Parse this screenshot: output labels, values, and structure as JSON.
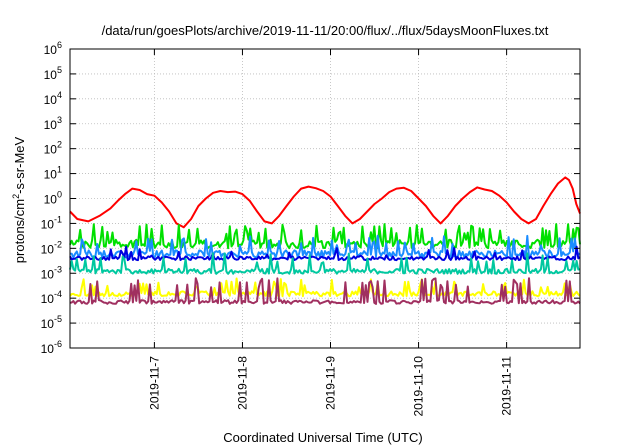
{
  "chart_data": {
    "type": "line",
    "title": "/data/run/goesPlots/archive/2019-11-11/20:00/flux/../flux/5daysMoonFluxes.txt",
    "xlabel": "Coordinated Universal Time (UTC)",
    "ylabel": {
      "base": "protons/cm",
      "sup": "2",
      "rest": "-s-sr-MeV"
    },
    "yscale": "log",
    "ylim": [
      1e-06,
      1000000.0
    ],
    "xlim": [
      "2019-11-06T01:00",
      "2019-11-11T20:00"
    ],
    "y_ticks": [
      {
        "value": 1e-06,
        "base": "10",
        "exp": "-6"
      },
      {
        "value": 1e-05,
        "base": "10",
        "exp": "-5"
      },
      {
        "value": 0.0001,
        "base": "10",
        "exp": "-4"
      },
      {
        "value": 0.001,
        "base": "10",
        "exp": "-3"
      },
      {
        "value": 0.01,
        "base": "10",
        "exp": "-2"
      },
      {
        "value": 0.1,
        "base": "10",
        "exp": "-1"
      },
      {
        "value": 1.0,
        "base": "10",
        "exp": "0"
      },
      {
        "value": 10.0,
        "base": "10",
        "exp": "1"
      },
      {
        "value": 100.0,
        "base": "10",
        "exp": "2"
      },
      {
        "value": 1000.0,
        "base": "10",
        "exp": "3"
      },
      {
        "value": 10000.0,
        "base": "10",
        "exp": "4"
      },
      {
        "value": 100000.0,
        "base": "10",
        "exp": "5"
      },
      {
        "value": 1000000.0,
        "base": "10",
        "exp": "6"
      }
    ],
    "x_ticks": [
      {
        "value": "2019-11-07",
        "label": "2019-11-7"
      },
      {
        "value": "2019-11-08",
        "label": "2019-11-8"
      },
      {
        "value": "2019-11-09",
        "label": "2019-11-9"
      },
      {
        "value": "2019-11-10",
        "label": "2019-11-10"
      },
      {
        "value": "2019-11-11",
        "label": "2019-11-11"
      }
    ],
    "grid": true,
    "legend": "none",
    "series": [
      {
        "color": "#ff0000",
        "points": [
          [
            "2019-11-06T01:00",
            0.3
          ],
          [
            "2019-11-06T03:00",
            0.15
          ],
          [
            "2019-11-06T06:00",
            0.12
          ],
          [
            "2019-11-06T09:00",
            0.2
          ],
          [
            "2019-11-06T12:00",
            0.4
          ],
          [
            "2019-11-06T14:00",
            0.8
          ],
          [
            "2019-11-06T16:00",
            1.5
          ],
          [
            "2019-11-06T18:00",
            2.5
          ],
          [
            "2019-11-06T20:00",
            2.2
          ],
          [
            "2019-11-06T22:00",
            1.5
          ],
          [
            "2019-11-07T00:00",
            1.3
          ],
          [
            "2019-11-07T02:00",
            0.7
          ],
          [
            "2019-11-07T04:00",
            0.3
          ],
          [
            "2019-11-07T06:00",
            0.1
          ],
          [
            "2019-11-07T08:00",
            0.07
          ],
          [
            "2019-11-07T10:00",
            0.15
          ],
          [
            "2019-11-07T12:00",
            0.5
          ],
          [
            "2019-11-07T14:00",
            1.0
          ],
          [
            "2019-11-07T16:00",
            1.7
          ],
          [
            "2019-11-07T18:00",
            2.0
          ],
          [
            "2019-11-07T20:00",
            1.8
          ],
          [
            "2019-11-07T22:00",
            1.9
          ],
          [
            "2019-11-08T00:00",
            1.5
          ],
          [
            "2019-11-08T02:00",
            0.8
          ],
          [
            "2019-11-08T04:00",
            0.3
          ],
          [
            "2019-11-08T06:00",
            0.12
          ],
          [
            "2019-11-08T08:00",
            0.1
          ],
          [
            "2019-11-08T10:00",
            0.2
          ],
          [
            "2019-11-08T12:00",
            0.5
          ],
          [
            "2019-11-08T14:00",
            1.2
          ],
          [
            "2019-11-08T16:00",
            2.5
          ],
          [
            "2019-11-08T18:00",
            3.0
          ],
          [
            "2019-11-08T20:00",
            2.6
          ],
          [
            "2019-11-08T22:00",
            2.0
          ],
          [
            "2019-11-09T00:00",
            1.2
          ],
          [
            "2019-11-09T02:00",
            0.5
          ],
          [
            "2019-11-09T04:00",
            0.2
          ],
          [
            "2019-11-09T06:00",
            0.1
          ],
          [
            "2019-11-09T08:00",
            0.15
          ],
          [
            "2019-11-09T10:00",
            0.3
          ],
          [
            "2019-11-09T12:00",
            0.6
          ],
          [
            "2019-11-09T14:00",
            1.0
          ],
          [
            "2019-11-09T16:00",
            1.8
          ],
          [
            "2019-11-09T18:00",
            2.5
          ],
          [
            "2019-11-09T20:00",
            2.7
          ],
          [
            "2019-11-09T22:00",
            2.0
          ],
          [
            "2019-11-10T00:00",
            1.0
          ],
          [
            "2019-11-10T02:00",
            0.5
          ],
          [
            "2019-11-10T04:00",
            0.2
          ],
          [
            "2019-11-10T06:00",
            0.1
          ],
          [
            "2019-11-10T08:00",
            0.2
          ],
          [
            "2019-11-10T10:00",
            0.5
          ],
          [
            "2019-11-10T12:00",
            1.0
          ],
          [
            "2019-11-10T14:00",
            1.8
          ],
          [
            "2019-11-10T16:00",
            2.8
          ],
          [
            "2019-11-10T18:00",
            2.3
          ],
          [
            "2019-11-10T20:00",
            2.0
          ],
          [
            "2019-11-10T22:00",
            1.3
          ],
          [
            "2019-11-11T00:00",
            0.7
          ],
          [
            "2019-11-11T02:00",
            0.3
          ],
          [
            "2019-11-11T04:00",
            0.15
          ],
          [
            "2019-11-11T06:00",
            0.1
          ],
          [
            "2019-11-11T08:00",
            0.15
          ],
          [
            "2019-11-11T10:00",
            0.5
          ],
          [
            "2019-11-11T12:00",
            1.5
          ],
          [
            "2019-11-11T14:00",
            4.0
          ],
          [
            "2019-11-11T16:00",
            7.0
          ],
          [
            "2019-11-11T17:00",
            5.5
          ],
          [
            "2019-11-11T18:00",
            2.5
          ],
          [
            "2019-11-11T19:00",
            0.6
          ],
          [
            "2019-11-11T20:00",
            0.25
          ]
        ]
      },
      {
        "color": "#00e000",
        "base": 0.015,
        "spike": 0.06,
        "spikes": 70,
        "jitter": 0.35
      },
      {
        "color": "#1a8cff",
        "base": 0.006,
        "spike": 0.02,
        "spikes": 45,
        "jitter": 0.3
      },
      {
        "color": "#0000e0",
        "base": 0.004,
        "spike": 0.008,
        "spikes": 25,
        "jitter": 0.15
      },
      {
        "color": "#00c8a0",
        "base": 0.0012,
        "spike": 0.004,
        "spikes": 35,
        "jitter": 0.2
      },
      {
        "color": "#ffff00",
        "base": 0.00015,
        "spike": 0.0004,
        "spikes": 45,
        "jitter": 0.2
      },
      {
        "color": "#a03060",
        "base": 7e-05,
        "spike": 0.0004,
        "spikes": 50,
        "jitter": 0.15
      }
    ]
  }
}
